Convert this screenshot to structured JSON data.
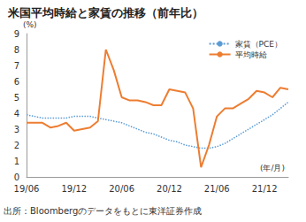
{
  "chart_data": {
    "type": "line",
    "title": "米国平均時給と家賃の推移（前年比）",
    "ylabel": "(%)",
    "xlabel": "(年/月)",
    "source": "出所：Bloombergのデータをもとに東洋証券作成",
    "categories": [
      "19/06",
      null,
      null,
      null,
      null,
      null,
      "19/12",
      null,
      null,
      null,
      null,
      null,
      "20/06",
      null,
      null,
      null,
      null,
      null,
      "20/12",
      null,
      null,
      null,
      null,
      null,
      "21/06",
      null,
      null,
      null,
      null,
      null,
      "21/12",
      null,
      null,
      null
    ],
    "series": [
      {
        "name": "家賃（PCE）",
        "color": "#5b9bd5",
        "line_style": "dotted",
        "marker": "none",
        "values": [
          3.9,
          3.8,
          3.7,
          3.7,
          3.7,
          3.7,
          3.8,
          3.8,
          3.8,
          3.7,
          3.6,
          3.5,
          3.4,
          3.2,
          3.0,
          2.8,
          2.7,
          2.5,
          2.3,
          2.2,
          2.0,
          1.9,
          1.8,
          1.8,
          1.9,
          2.1,
          2.4,
          2.7,
          3.0,
          3.3,
          3.6,
          3.9,
          4.3,
          4.7
        ]
      },
      {
        "name": "平均時給",
        "color": "#ed7d31",
        "line_style": "solid",
        "marker": "none",
        "values": [
          3.4,
          3.4,
          3.4,
          3.1,
          3.2,
          3.4,
          2.9,
          3.0,
          3.1,
          3.5,
          8.0,
          6.7,
          5.0,
          4.8,
          4.8,
          4.7,
          4.5,
          4.5,
          5.5,
          5.4,
          5.3,
          4.3,
          0.6,
          2.0,
          3.8,
          4.3,
          4.3,
          4.6,
          4.9,
          5.4,
          5.3,
          5.0,
          5.6,
          5.5
        ]
      }
    ],
    "ylim": [
      0,
      9
    ],
    "yticks": [
      0,
      1,
      2,
      3,
      4,
      5,
      6,
      7,
      8,
      9
    ],
    "grid": false,
    "legend": "upper right"
  }
}
